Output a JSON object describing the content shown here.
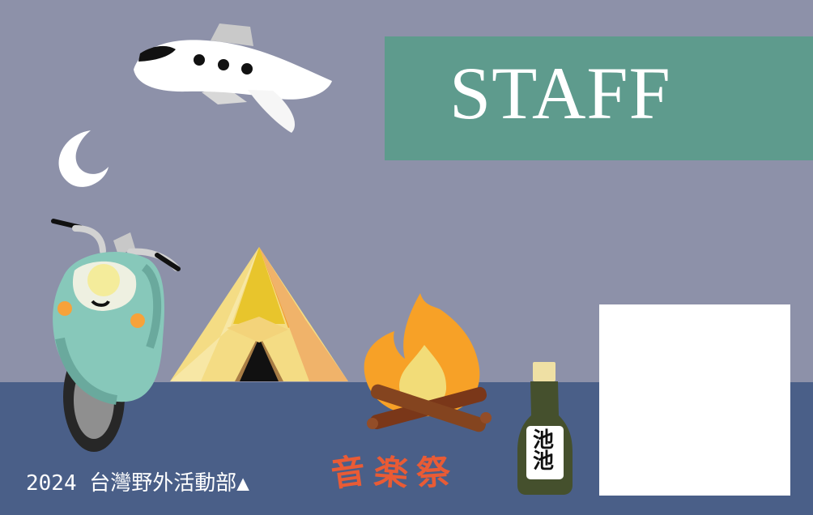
{
  "banner": {
    "title": "STAFF"
  },
  "footer": {
    "text": "2024 台灣野外活動部▲"
  },
  "logo": {
    "chars": [
      "音",
      "楽",
      "祭"
    ]
  },
  "bottle": {
    "label": "池池"
  },
  "icons": {
    "airplane": "airplane-icon",
    "moon": "moon-icon",
    "scooter": "scooter-icon",
    "tent": "tent-icon",
    "campfire": "campfire-icon",
    "bottle": "bottle-icon"
  },
  "colors": {
    "sky": "#8d91a9",
    "ground": "#4a5f88",
    "banner": "#5e9b8d",
    "white": "#ffffff",
    "accent_orange": "#e95b35"
  }
}
